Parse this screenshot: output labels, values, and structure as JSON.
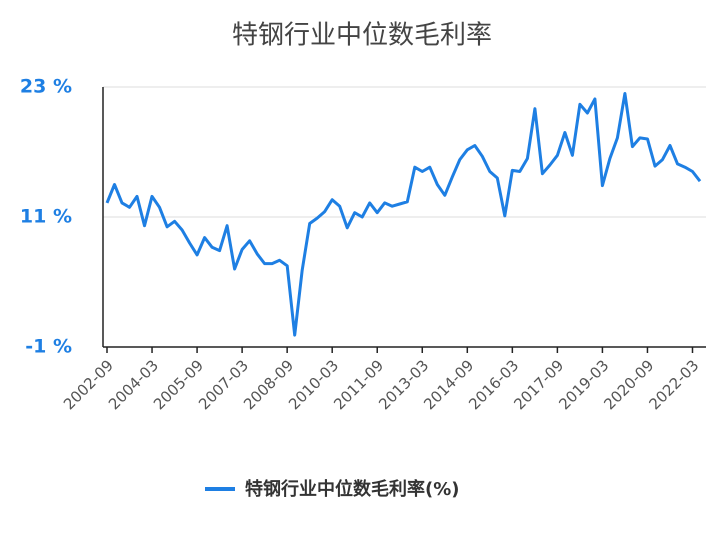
{
  "chart_data": {
    "type": "line",
    "title": "特钢行业中位数毛利率",
    "categories": [
      "2002-09",
      null,
      null,
      null,
      null,
      null,
      "2004-03",
      null,
      null,
      null,
      null,
      null,
      "2005-09",
      null,
      null,
      null,
      null,
      null,
      "2007-03",
      null,
      null,
      null,
      null,
      null,
      "2008-09",
      null,
      null,
      null,
      null,
      null,
      "2010-03",
      null,
      null,
      null,
      null,
      null,
      "2011-09",
      null,
      null,
      null,
      null,
      null,
      "2013-03",
      null,
      null,
      null,
      null,
      null,
      "2014-09",
      null,
      null,
      null,
      null,
      null,
      "2016-03",
      null,
      null,
      null,
      null,
      null,
      "2017-09",
      null,
      null,
      null,
      null,
      null,
      "2019-03",
      null,
      null,
      null,
      null,
      null,
      "2020-09",
      null,
      null,
      null,
      null,
      null,
      "2022-03",
      null
    ],
    "series": [
      {
        "name": "特钢行业中位数毛利率(%)",
        "color": "#1e7fe3",
        "values": [
          12.3,
          14.0,
          12.3,
          11.9,
          12.9,
          10.2,
          12.9,
          11.9,
          10.1,
          10.6,
          9.8,
          8.6,
          7.5,
          9.1,
          8.2,
          7.9,
          10.2,
          6.2,
          8.0,
          8.8,
          7.6,
          6.7,
          6.7,
          7.0,
          6.5,
          0.1,
          6.1,
          10.4,
          10.9,
          11.5,
          12.6,
          12.0,
          10.0,
          11.4,
          11.0,
          12.3,
          11.4,
          12.3,
          12.0,
          12.2,
          12.4,
          15.6,
          15.2,
          15.6,
          14.0,
          13.0,
          14.7,
          16.3,
          17.2,
          17.6,
          16.6,
          15.2,
          14.6,
          11.1,
          15.3,
          15.2,
          16.4,
          21.0,
          15.0,
          15.8,
          16.7,
          18.8,
          16.7,
          21.4,
          20.6,
          21.9,
          13.9,
          16.4,
          18.3,
          22.4,
          17.5,
          18.3,
          18.2,
          15.7,
          16.3,
          17.6,
          15.9,
          15.6,
          15.2,
          14.3
        ]
      }
    ],
    "ylim": [
      -1,
      23
    ],
    "yticks": [
      {
        "value": -1,
        "label": "-1 %"
      },
      {
        "value": 11,
        "label": "11 %"
      },
      {
        "value": 23,
        "label": "23 %"
      }
    ],
    "grid": true,
    "legend": "bottom"
  }
}
